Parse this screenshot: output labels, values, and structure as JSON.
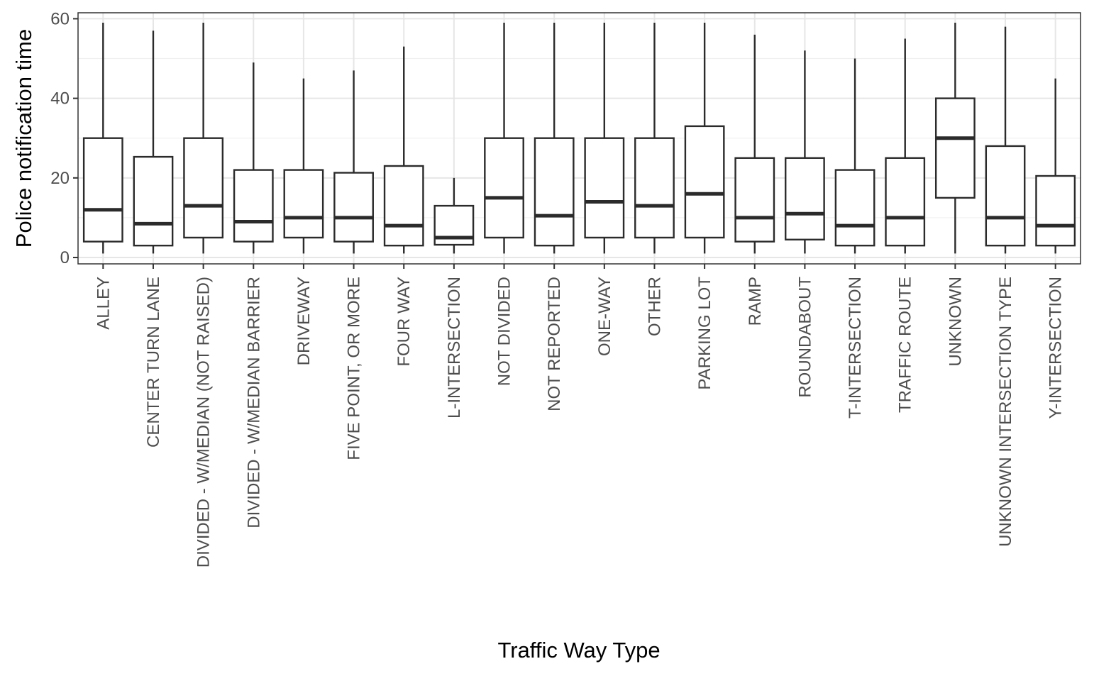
{
  "chart_data": {
    "type": "boxplot",
    "xlabel": "Traffic Way Type",
    "ylabel": "Police notification time",
    "ylim": [
      -1.6,
      61.5
    ],
    "yticks": [
      0,
      20,
      40,
      60
    ],
    "grid": true,
    "categories": [
      "ALLEY",
      "CENTER TURN LANE",
      "DIVIDED - W/MEDIAN (NOT RAISED)",
      "DIVIDED - W/MEDIAN BARRIER",
      "DRIVEWAY",
      "FIVE POINT, OR MORE",
      "FOUR WAY",
      "L-INTERSECTION",
      "NOT DIVIDED",
      "NOT REPORTED",
      "ONE-WAY",
      "OTHER",
      "PARKING LOT",
      "RAMP",
      "ROUNDABOUT",
      "T-INTERSECTION",
      "TRAFFIC ROUTE",
      "UNKNOWN",
      "UNKNOWN INTERSECTION TYPE",
      "Y-INTERSECTION"
    ],
    "boxes": [
      {
        "min": 1,
        "q1": 4,
        "median": 12,
        "q3": 30,
        "max": 59
      },
      {
        "min": 1,
        "q1": 3,
        "median": 8.5,
        "q3": 25.3,
        "max": 57
      },
      {
        "min": 1,
        "q1": 5,
        "median": 13,
        "q3": 30,
        "max": 59
      },
      {
        "min": 1,
        "q1": 4,
        "median": 9,
        "q3": 22,
        "max": 49
      },
      {
        "min": 1,
        "q1": 5,
        "median": 10,
        "q3": 22,
        "max": 45
      },
      {
        "min": 1,
        "q1": 4,
        "median": 10,
        "q3": 21.3,
        "max": 47
      },
      {
        "min": 1,
        "q1": 3,
        "median": 8,
        "q3": 23,
        "max": 53
      },
      {
        "min": 1,
        "q1": 3.2,
        "median": 5,
        "q3": 13,
        "max": 20
      },
      {
        "min": 1,
        "q1": 5,
        "median": 15,
        "q3": 30,
        "max": 59
      },
      {
        "min": 1,
        "q1": 3,
        "median": 10.5,
        "q3": 30,
        "max": 59
      },
      {
        "min": 1,
        "q1": 5,
        "median": 14,
        "q3": 30,
        "max": 59
      },
      {
        "min": 1,
        "q1": 5,
        "median": 13,
        "q3": 30,
        "max": 59
      },
      {
        "min": 1,
        "q1": 5,
        "median": 16,
        "q3": 33,
        "max": 59
      },
      {
        "min": 1,
        "q1": 4,
        "median": 10,
        "q3": 25,
        "max": 56
      },
      {
        "min": 1,
        "q1": 4.5,
        "median": 11,
        "q3": 25,
        "max": 52
      },
      {
        "min": 1,
        "q1": 3,
        "median": 8,
        "q3": 22,
        "max": 50
      },
      {
        "min": 1,
        "q1": 3,
        "median": 10,
        "q3": 25,
        "max": 55
      },
      {
        "min": 1,
        "q1": 15,
        "median": 30,
        "q3": 40,
        "max": 59
      },
      {
        "min": 1,
        "q1": 3,
        "median": 10,
        "q3": 28,
        "max": 58
      },
      {
        "min": 1,
        "q1": 3,
        "median": 8,
        "q3": 20.5,
        "max": 45
      }
    ]
  }
}
